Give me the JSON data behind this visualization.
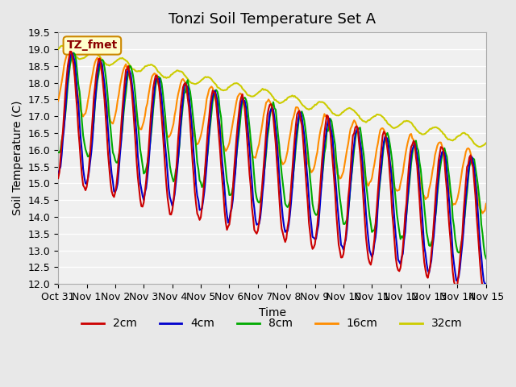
{
  "title": "Tonzi Soil Temperature Set A",
  "xlabel": "Time",
  "ylabel": "Soil Temperature (C)",
  "ylim": [
    12.0,
    19.5
  ],
  "xlim_days": [
    0,
    15
  ],
  "x_tick_labels": [
    "Oct 31",
    "Nov 1",
    "Nov 2",
    "Nov 3",
    "Nov 4",
    "Nov 5",
    "Nov 6",
    "Nov 7",
    "Nov 8",
    "Nov 9",
    "Nov 10",
    "Nov 11",
    "Nov 12",
    "Nov 13",
    "Nov 14",
    "Nov 15"
  ],
  "series": {
    "2cm": {
      "color": "#cc0000",
      "linewidth": 1.5
    },
    "4cm": {
      "color": "#0000cc",
      "linewidth": 1.5
    },
    "8cm": {
      "color": "#00aa00",
      "linewidth": 1.5
    },
    "16cm": {
      "color": "#ff8c00",
      "linewidth": 1.5
    },
    "32cm": {
      "color": "#cccc00",
      "linewidth": 1.5
    }
  },
  "legend_labels": [
    "2cm",
    "4cm",
    "8cm",
    "16cm",
    "32cm"
  ],
  "legend_colors": [
    "#cc0000",
    "#0000cc",
    "#00aa00",
    "#ff8c00",
    "#cccc00"
  ],
  "annotation_text": "TZ_fmet",
  "annotation_color": "#8b0000",
  "annotation_bg": "#ffffcc",
  "annotation_border": "#cc8800",
  "bg_color": "#e8e8e8",
  "plot_bg_color": "#f0f0f0",
  "grid_color": "#ffffff",
  "title_fontsize": 13,
  "axis_fontsize": 10,
  "tick_fontsize": 9
}
